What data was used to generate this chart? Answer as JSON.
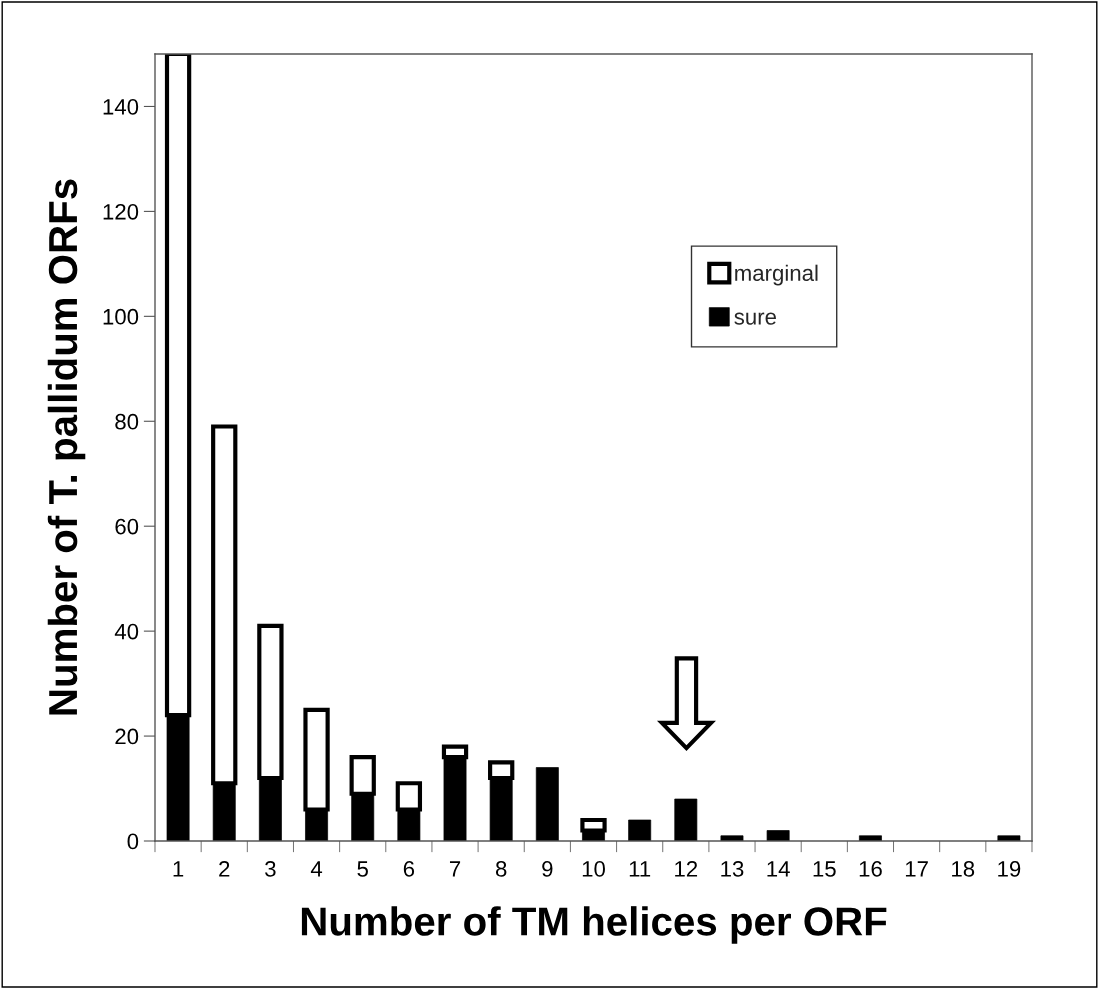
{
  "chart_data": {
    "type": "bar",
    "stacked": true,
    "xlabel": "Number of TM helices per ORF",
    "ylabel": "Number of T. pallidum ORFs",
    "categories": [
      "1",
      "2",
      "3",
      "4",
      "5",
      "6",
      "7",
      "8",
      "9",
      "10",
      "11",
      "12",
      "13",
      "14",
      "15",
      "16",
      "17",
      "18",
      "19"
    ],
    "series": [
      {
        "name": "sure",
        "color": "#000000",
        "values": [
          24,
          11,
          12,
          6,
          9,
          6,
          16,
          12,
          14,
          2,
          4,
          8,
          1,
          2,
          0,
          1,
          0,
          0,
          1
        ]
      },
      {
        "name": "marginal",
        "color": "#ffffff",
        "values": [
          126,
          68,
          29,
          19,
          7,
          5,
          2,
          3,
          0,
          2,
          0,
          0,
          0,
          0,
          0,
          0,
          0,
          0,
          0
        ]
      }
    ],
    "ylim": [
      0,
      150
    ],
    "yticks": [
      0,
      20,
      40,
      60,
      80,
      100,
      120,
      140
    ],
    "grid": false,
    "legend": "top right"
  }
}
